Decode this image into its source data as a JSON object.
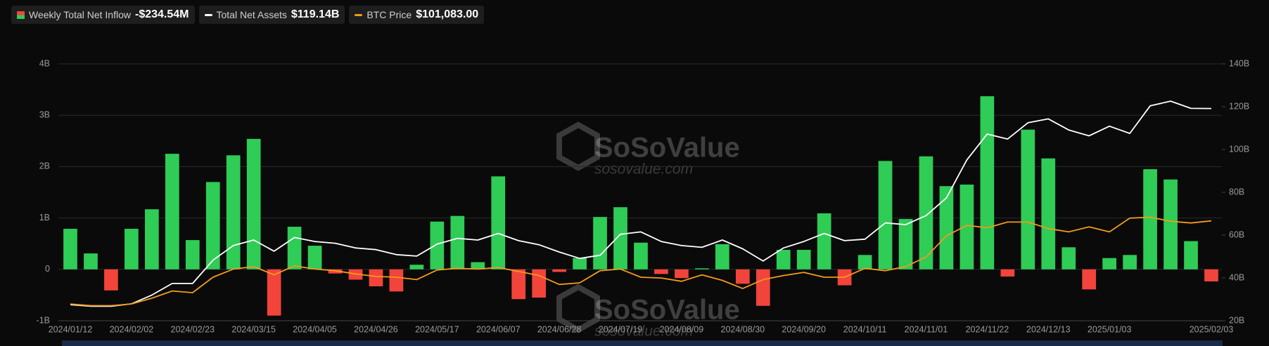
{
  "chart_data": {
    "type": "bar",
    "watermark": "SoSoValue",
    "watermark_url": "sosovalue.com",
    "categories": [
      "2024/01/12",
      null,
      null,
      "2024/02/02",
      null,
      null,
      "2024/02/23",
      null,
      null,
      "2024/03/15",
      null,
      null,
      "2024/04/05",
      null,
      null,
      "2024/04/26",
      null,
      null,
      "2024/05/17",
      null,
      null,
      "2024/06/07",
      null,
      null,
      "2024/06/28",
      null,
      null,
      "2024/07/19",
      null,
      null,
      "2024/08/09",
      null,
      null,
      "2024/08/30",
      null,
      null,
      "2024/09/20",
      null,
      null,
      "2024/10/11",
      null,
      null,
      "2024/11/01",
      null,
      null,
      "2024/11/22",
      null,
      null,
      "2024/12/13",
      null,
      null,
      "2025/01/03",
      null,
      null,
      null,
      null,
      "2025/02/03"
    ],
    "ylim": [
      -1,
      4
    ],
    "yticks": [
      {
        "value": -1,
        "label": "-1B"
      },
      0,
      {
        "value": 1,
        "label": "1B"
      },
      {
        "value": 2,
        "label": "2B"
      },
      {
        "value": 3,
        "label": "3B"
      },
      {
        "value": 4,
        "label": "4B"
      }
    ],
    "y2lim": [
      20,
      140
    ],
    "y2ticks": [
      {
        "value": 20,
        "label": "20B"
      },
      {
        "value": 40,
        "label": "40B"
      },
      {
        "value": 60,
        "label": "60B"
      },
      {
        "value": 80,
        "label": "80B"
      },
      {
        "value": 100,
        "label": "100B"
      },
      {
        "value": 120,
        "label": "120B"
      },
      {
        "value": 140,
        "label": "140B"
      }
    ],
    "y3lim": [
      35000,
      205000
    ],
    "grid": true,
    "series": [
      {
        "name": "Weekly Total Net Inflow",
        "latest_label": "-$234.54M",
        "type": "bar",
        "color": "#2fcc56",
        "negative_color": "#f2443a",
        "values": [
          0.79,
          0.31,
          -0.41,
          0.79,
          1.17,
          2.25,
          0.57,
          1.7,
          2.22,
          2.54,
          -0.9,
          0.83,
          0.46,
          -0.08,
          -0.2,
          -0.33,
          -0.43,
          0.09,
          0.93,
          1.04,
          0.14,
          1.81,
          -0.58,
          -0.55,
          -0.05,
          0.22,
          1.02,
          1.21,
          0.52,
          -0.09,
          -0.17,
          0.02,
          0.49,
          -0.28,
          -0.71,
          0.38,
          0.38,
          1.09,
          -0.31,
          0.28,
          2.11,
          0.98,
          2.2,
          1.62,
          1.65,
          3.37,
          -0.14,
          2.72,
          2.16,
          0.43,
          -0.39,
          0.22,
          0.28,
          1.95,
          1.75,
          0.55,
          -0.23454
        ]
      },
      {
        "name": "Total Net Assets",
        "latest_label": "$119.14B",
        "type": "line",
        "axis": "y2",
        "color": "#ffffff",
        "values": [
          27.5,
          26.8,
          26.8,
          27.9,
          32,
          37.4,
          37.4,
          48.3,
          55.1,
          57.7,
          52.5,
          58.9,
          57,
          56.2,
          54,
          53.2,
          50.9,
          50.2,
          55.8,
          58.5,
          57.7,
          60.8,
          57.4,
          55.5,
          52.1,
          49.1,
          50.6,
          60.4,
          61.5,
          57,
          55.1,
          54.3,
          57.7,
          53.6,
          47.9,
          54,
          57,
          60.8,
          57.4,
          58.1,
          65.7,
          64.9,
          69.1,
          77.4,
          95.1,
          107.2,
          104.9,
          112.5,
          114.3,
          109.1,
          106.4,
          110.9,
          107.5,
          120.4,
          122.6,
          119.2,
          119.14
        ]
      },
      {
        "name": "BTC Price",
        "latest_label": "$101,083.00",
        "type": "line",
        "axis": "y3",
        "color": "#f39a1c",
        "values": [
          46100,
          45000,
          45000,
          46100,
          49900,
          54700,
          53600,
          63800,
          69200,
          70800,
          65400,
          71300,
          69200,
          68100,
          66000,
          64300,
          63800,
          62200,
          68600,
          69700,
          69200,
          70200,
          67600,
          64900,
          59000,
          60100,
          68100,
          69200,
          63800,
          63300,
          61100,
          65400,
          61700,
          56300,
          62200,
          64900,
          67000,
          63800,
          63800,
          69700,
          68100,
          70800,
          77200,
          91200,
          98100,
          96500,
          100300,
          100300,
          96000,
          93800,
          97100,
          93800,
          102900,
          103500,
          100800,
          99700,
          101083
        ]
      }
    ]
  }
}
